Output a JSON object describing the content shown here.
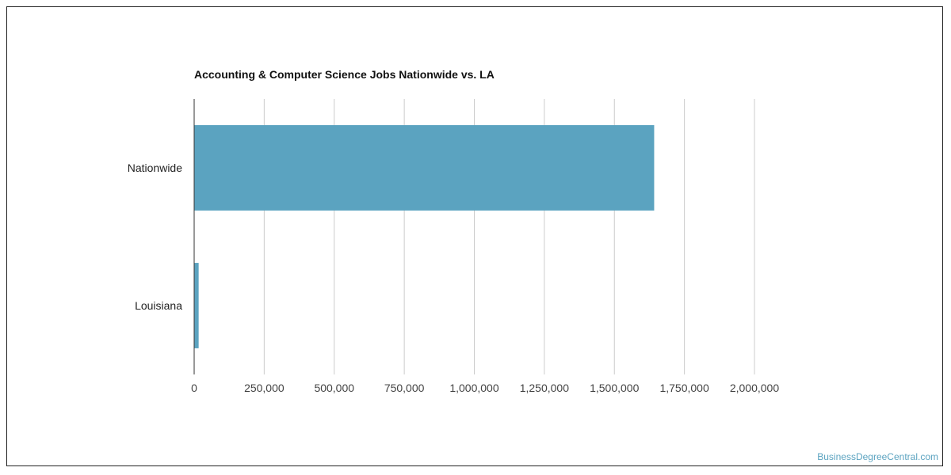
{
  "watermark": "BusinessDegreeCentral.com",
  "colors": {
    "bar": "#5ba3c0",
    "watermark": "#5ba3c0"
  },
  "chart_data": {
    "type": "bar",
    "orientation": "horizontal",
    "title": "Accounting & Computer Science Jobs Nationwide vs. LA",
    "categories": [
      "Nationwide",
      "Louisiana"
    ],
    "values": [
      1642000,
      16000
    ],
    "xlim": [
      0,
      2000000
    ],
    "xticks": [
      0,
      250000,
      500000,
      750000,
      1000000,
      1250000,
      1500000,
      1750000,
      2000000
    ],
    "xtick_labels": [
      "0",
      "250,000",
      "500,000",
      "750,000",
      "1,000,000",
      "1,250,000",
      "1,500,000",
      "1,750,000",
      "2,000,000"
    ],
    "grid": "vertical",
    "legend": "none"
  }
}
